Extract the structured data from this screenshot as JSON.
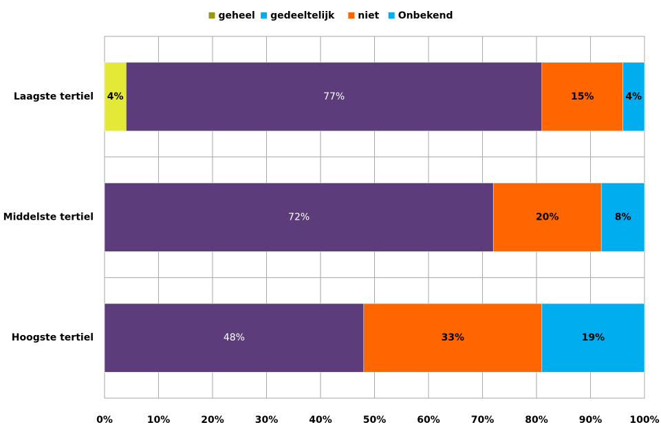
{
  "chart_data": {
    "type": "stacked_barh",
    "categories": [
      "Laagste tertiel",
      "Middelste tertiel",
      "Hoogste tertiel"
    ],
    "series": [
      {
        "name": "geheel",
        "color": "#e4e836",
        "legend_color": "#9a9a12",
        "label_color": "#000000",
        "values": [
          4,
          null,
          null
        ],
        "value_labels": [
          "4%",
          null,
          null
        ]
      },
      {
        "name": "gedeeltelijk",
        "color": "#5c3c7b",
        "legend_color": "#00aeef",
        "label_color": "#ffffff",
        "values": [
          77,
          72,
          48
        ],
        "value_labels": [
          "77%",
          "72%",
          "48%"
        ]
      },
      {
        "name": "niet",
        "color": "#ff6600",
        "legend_color": "#ff6600",
        "label_color": "#000000",
        "values": [
          15,
          20,
          33
        ],
        "value_labels": [
          "15%",
          "20%",
          "33%"
        ]
      },
      {
        "name": "Onbekend",
        "color": "#00aeef",
        "legend_color": "#00aeef",
        "label_color": "#000000",
        "values": [
          4,
          8,
          19
        ],
        "value_labels": [
          "4%",
          "8%",
          "19%"
        ]
      }
    ],
    "xlim": [
      0,
      100
    ],
    "xticks": [
      {
        "value": 0,
        "label": "0%"
      },
      {
        "value": 10,
        "label": "10%"
      },
      {
        "value": 20,
        "label": "20%"
      },
      {
        "value": 30,
        "label": "30%"
      },
      {
        "value": 40,
        "label": "40%"
      },
      {
        "value": 50,
        "label": "50%"
      },
      {
        "value": 60,
        "label": "60%"
      },
      {
        "value": 70,
        "label": "70%"
      },
      {
        "value": 80,
        "label": "80%"
      },
      {
        "value": 90,
        "label": "90%"
      },
      {
        "value": 100,
        "label": "100%"
      }
    ],
    "grid": true,
    "legend": "top"
  }
}
